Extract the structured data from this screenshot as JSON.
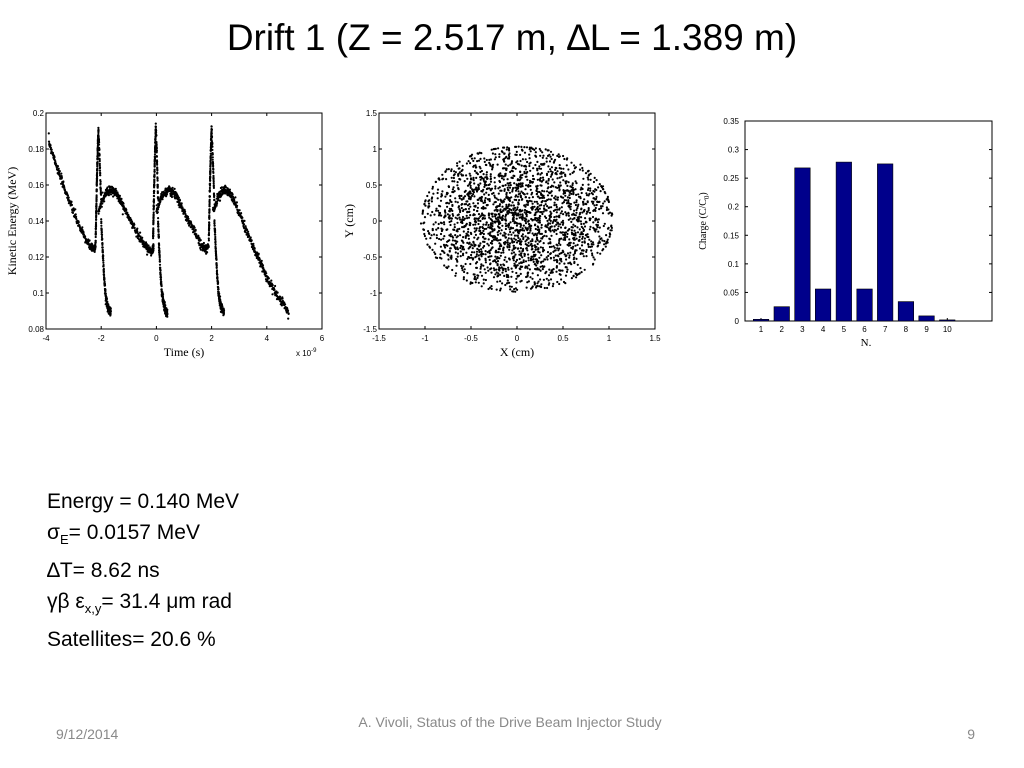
{
  "slide": {
    "title": "Drift 1 (Z = 2.517 m, ∆L = 1.389 m)"
  },
  "stats": {
    "energy": "Energy = 0.140 MeV",
    "sigma_symbol": "σ",
    "sigma_sub": "E",
    "sigma_value": "= 0.0157 MeV",
    "delta_t": "∆T= 8.62 ns",
    "emit_symbol": "γβ ε",
    "emit_sub": "x,y",
    "emit_value": "= 31.4 μm rad",
    "satellites": "Satellites= 20.6 %"
  },
  "footer": {
    "date": "9/12/2014",
    "center": "A. Vivoli, Status of the Drive Beam Injector Study",
    "page": "9"
  },
  "chart_data": [
    {
      "type": "scatter",
      "xlabel": "Time  (s)",
      "ylabel": "Kinetic Energy  (MeV)",
      "x_exponent_label": "x 10",
      "x_exponent_power": "-9",
      "xlim": [
        -4,
        6
      ],
      "ylim": [
        0.08,
        0.2
      ],
      "xticks": [
        "-4",
        "-2",
        "0",
        "2",
        "4",
        "6"
      ],
      "yticks": [
        "0.08",
        "0.1",
        "0.12",
        "0.14",
        "0.16",
        "0.18",
        "0.2"
      ],
      "color": "#000000",
      "note": "x values in units of 1e-9 s",
      "series": [
        {
          "x": [
            -3.9,
            -3.7,
            -3.5,
            -3.3,
            -3.1,
            -2.9,
            -2.7,
            -2.5,
            -2.35,
            -2.25,
            -2.2
          ],
          "y": [
            0.184,
            0.175,
            0.165,
            0.157,
            0.149,
            0.141,
            0.134,
            0.128,
            0.125,
            0.124,
            0.127
          ]
        },
        {
          "x": [
            -2.2,
            -2.18,
            -2.16,
            -2.14,
            -2.12,
            -2.1,
            -2.05,
            -2.0
          ],
          "y": [
            0.13,
            0.145,
            0.16,
            0.172,
            0.183,
            0.19,
            0.172,
            0.15
          ]
        },
        {
          "x": [
            -2.0,
            -1.95,
            -1.9,
            -1.85,
            -1.8,
            -1.75,
            -1.7,
            -1.65
          ],
          "y": [
            0.14,
            0.125,
            0.11,
            0.1,
            0.095,
            0.092,
            0.09,
            0.089
          ]
        },
        {
          "x": [
            -2.1,
            -1.95,
            -1.8,
            -1.65,
            -1.5,
            -1.35,
            -1.2,
            -1.0,
            -0.8,
            -0.6,
            -0.4,
            -0.25,
            -0.15,
            -0.1
          ],
          "y": [
            0.145,
            0.152,
            0.156,
            0.157,
            0.156,
            0.153,
            0.148,
            0.142,
            0.136,
            0.131,
            0.126,
            0.124,
            0.123,
            0.126
          ]
        },
        {
          "x": [
            -0.12,
            -0.1,
            -0.08,
            -0.06,
            -0.04,
            -0.02,
            0.02,
            0.06
          ],
          "y": [
            0.13,
            0.145,
            0.16,
            0.172,
            0.183,
            0.193,
            0.175,
            0.152
          ]
        },
        {
          "x": [
            0.06,
            0.1,
            0.15,
            0.2,
            0.25,
            0.3,
            0.35,
            0.4
          ],
          "y": [
            0.14,
            0.125,
            0.11,
            0.1,
            0.095,
            0.092,
            0.09,
            0.089
          ]
        },
        {
          "x": [
            0.0,
            0.15,
            0.3,
            0.45,
            0.6,
            0.75,
            0.9,
            1.1,
            1.3,
            1.5,
            1.65,
            1.8,
            1.9
          ],
          "y": [
            0.145,
            0.152,
            0.156,
            0.157,
            0.156,
            0.153,
            0.148,
            0.142,
            0.136,
            0.131,
            0.126,
            0.124,
            0.126
          ]
        },
        {
          "x": [
            1.9,
            1.92,
            1.94,
            1.96,
            1.98,
            2.0,
            2.05,
            2.1
          ],
          "y": [
            0.13,
            0.145,
            0.16,
            0.172,
            0.183,
            0.191,
            0.172,
            0.15
          ]
        },
        {
          "x": [
            2.1,
            2.15,
            2.2,
            2.25,
            2.3,
            2.35,
            2.4,
            2.45
          ],
          "y": [
            0.14,
            0.125,
            0.11,
            0.1,
            0.095,
            0.092,
            0.09,
            0.089
          ]
        },
        {
          "x": [
            2.05,
            2.2,
            2.35,
            2.5,
            2.65,
            2.8,
            3.0,
            3.2,
            3.4,
            3.6,
            3.8,
            4.0,
            4.2,
            4.4,
            4.6,
            4.8
          ],
          "y": [
            0.145,
            0.152,
            0.156,
            0.157,
            0.156,
            0.152,
            0.145,
            0.137,
            0.129,
            0.122,
            0.116,
            0.109,
            0.103,
            0.098,
            0.094,
            0.089
          ]
        }
      ]
    },
    {
      "type": "scatter",
      "xlabel": "X  (cm)",
      "ylabel": "Y  (cm)",
      "xlim": [
        -1.5,
        1.5
      ],
      "ylim": [
        -1.5,
        1.5
      ],
      "xticks": [
        "-1.5",
        "-1",
        "-0.5",
        "0",
        "0.5",
        "1",
        "1.5"
      ],
      "yticks": [
        "-1.5",
        "-1",
        "-0.5",
        "0",
        "0.5",
        "1",
        "1.5"
      ],
      "color": "#000000",
      "points": [
        [
          0,
          0
        ],
        [
          0.3,
          0.2
        ],
        [
          -0.4,
          0.5
        ],
        [
          0.8,
          -0.3
        ],
        [
          -0.9,
          -0.4
        ],
        [
          0.5,
          0.7
        ],
        [
          -0.2,
          -0.8
        ],
        [
          1.0,
          0.1
        ],
        [
          -1.0,
          0.2
        ],
        [
          0.2,
          -0.95
        ],
        [
          -0.6,
          -0.7
        ],
        [
          0.7,
          0.6
        ]
      ],
      "distribution_extent": {
        "x": [
          -1.05,
          1.05
        ],
        "y": [
          -1.0,
          1.05
        ]
      }
    },
    {
      "type": "bar",
      "xlabel": "N.",
      "ylabel": "Charge (C/C",
      "ylabel_sub": "0",
      "ylabel_end": ")",
      "categories": [
        "1",
        "2",
        "3",
        "4",
        "5",
        "6",
        "7",
        "8",
        "9",
        "10"
      ],
      "values": [
        0.003,
        0.025,
        0.268,
        0.056,
        0.278,
        0.056,
        0.275,
        0.034,
        0.009,
        0.002
      ],
      "ylim": [
        0,
        0.35
      ],
      "yticks": [
        "0",
        "0.05",
        "0.1",
        "0.15",
        "0.2",
        "0.25",
        "0.3",
        "0.35"
      ],
      "color": "#00008b"
    }
  ]
}
